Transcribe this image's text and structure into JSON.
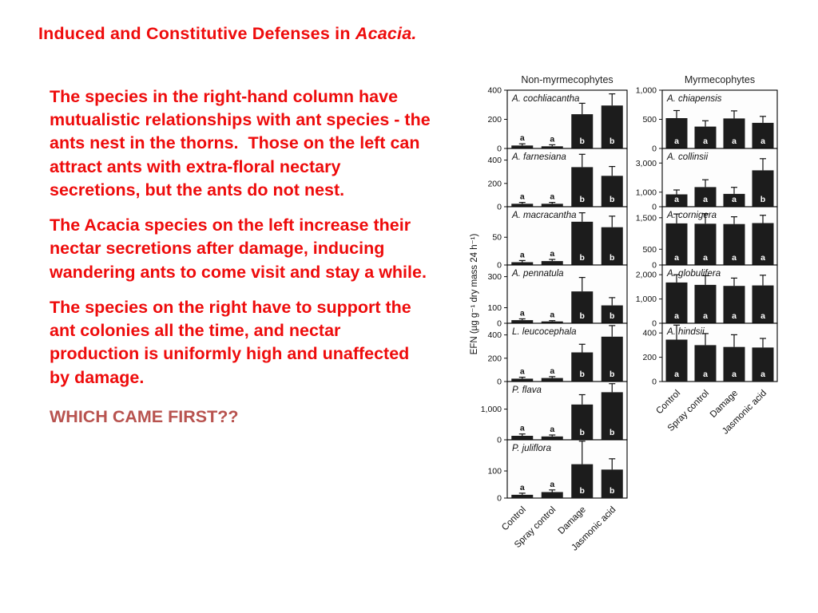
{
  "slide": {
    "title": {
      "prefix": "Induced and Constitutive Defenses in ",
      "emphasis": "Acacia."
    },
    "paragraphs": [
      "The species in the right-hand column have mutualistic relationships with ant species - the ants nest in the thorns.  Those on the left can attract ants with extra-floral nectary secretions, but the ants do not nest.",
      "The Acacia species on the left increase their nectar secretions after damage, inducing wandering ants to come visit and stay a while.",
      "The species on the right have to support the ant colonies all the time, and nectar production is uniformly high and unaffected by damage."
    ],
    "question": "WHICH CAME FIRST??",
    "colors": {
      "body_red": "#ee0c0c",
      "question_red": "#b8534f",
      "bar_fill": "#1c1c1c"
    }
  },
  "chart_data": [
    {
      "type": "bar",
      "group_title": "Non-myrmecophytes",
      "ylabel": "EFN (µg g⁻¹ dry mass 24 h⁻¹)",
      "categories": [
        "Control",
        "Spray control",
        "Damage",
        "Jasmonic acid"
      ],
      "panels": [
        {
          "species": "A. cochliacantha",
          "ylim": [
            0,
            400
          ],
          "yticks": [
            0,
            200,
            400
          ],
          "values": [
            20,
            15,
            235,
            295
          ],
          "errors": [
            12,
            10,
            75,
            80
          ],
          "letters": [
            "a",
            "a",
            "b",
            "b"
          ],
          "letter_pos": [
            "above",
            "above",
            "inside",
            "inside"
          ]
        },
        {
          "species": "A. farnesiana",
          "ylim": [
            0,
            500
          ],
          "yticks": [
            0,
            200,
            400
          ],
          "values": [
            25,
            25,
            340,
            265
          ],
          "errors": [
            12,
            12,
            110,
            80
          ],
          "letters": [
            "a",
            "a",
            "b",
            "b"
          ],
          "letter_pos": [
            "above",
            "above",
            "inside",
            "inside"
          ]
        },
        {
          "species": "A. macracantha",
          "ylim": [
            0,
            105
          ],
          "yticks": [
            0,
            50
          ],
          "values": [
            5,
            7,
            78,
            68
          ],
          "errors": [
            3,
            3,
            16,
            20
          ],
          "letters": [
            "a",
            "a",
            "b",
            "b"
          ],
          "letter_pos": [
            "above",
            "above",
            "inside",
            "inside"
          ]
        },
        {
          "species": "A. pennatula",
          "ylim": [
            0,
            375
          ],
          "yticks": [
            0,
            100,
            300
          ],
          "values": [
            20,
            12,
            205,
            115
          ],
          "errors": [
            8,
            5,
            90,
            50
          ],
          "letters": [
            "a",
            "a",
            "b",
            "b"
          ],
          "letter_pos": [
            "above",
            "above",
            "inside",
            "inside"
          ]
        },
        {
          "species": "L. leucocephala",
          "ylim": [
            0,
            500
          ],
          "yticks": [
            0,
            200,
            400
          ],
          "values": [
            25,
            30,
            250,
            385
          ],
          "errors": [
            12,
            12,
            70,
            95
          ],
          "letters": [
            "a",
            "a",
            "b",
            "b"
          ],
          "letter_pos": [
            "above",
            "above",
            "inside",
            "inside"
          ]
        },
        {
          "species": "P. flava",
          "ylim": [
            0,
            1900
          ],
          "yticks": [
            0,
            1000
          ],
          "values": [
            130,
            110,
            1150,
            1550
          ],
          "errors": [
            60,
            45,
            320,
            280
          ],
          "letters": [
            "a",
            "a",
            "b",
            "b"
          ],
          "letter_pos": [
            "above",
            "above",
            "inside",
            "inside"
          ]
        },
        {
          "species": "P. juliflora",
          "ylim": [
            0,
            215
          ],
          "yticks": [
            0,
            100
          ],
          "values": [
            12,
            22,
            125,
            105
          ],
          "errors": [
            6,
            8,
            85,
            40
          ],
          "letters": [
            "a",
            "a",
            "b",
            "b"
          ],
          "letter_pos": [
            "above",
            "above",
            "inside",
            "inside"
          ]
        }
      ]
    },
    {
      "type": "bar",
      "group_title": "Myrmecophytes",
      "ylabel": "",
      "categories": [
        "Control",
        "Spray control",
        "Damage",
        "Jasmonic acid"
      ],
      "panels": [
        {
          "species": "A. chiapensis",
          "ylim": [
            0,
            1000
          ],
          "yticks": [
            0,
            500,
            1000
          ],
          "values": [
            520,
            375,
            515,
            440
          ],
          "errors": [
            130,
            100,
            130,
            110
          ],
          "letters": [
            "a",
            "a",
            "a",
            "a"
          ],
          "letter_pos": [
            "inside",
            "inside",
            "inside",
            "inside"
          ]
        },
        {
          "species": "A. collinsii",
          "ylim": [
            0,
            4000
          ],
          "yticks": [
            0,
            1000,
            3000
          ],
          "values": [
            850,
            1350,
            880,
            2500
          ],
          "errors": [
            300,
            500,
            450,
            800
          ],
          "letters": [
            "a",
            "a",
            "a",
            "b"
          ],
          "letter_pos": [
            "inside",
            "inside",
            "inside",
            "inside"
          ]
        },
        {
          "species": "A. cornigera",
          "ylim": [
            0,
            1850
          ],
          "yticks": [
            0,
            500,
            1500
          ],
          "values": [
            1320,
            1310,
            1300,
            1330
          ],
          "errors": [
            300,
            320,
            230,
            250
          ],
          "letters": [
            "a",
            "a",
            "a",
            "a"
          ],
          "letter_pos": [
            "inside",
            "inside",
            "inside",
            "inside"
          ]
        },
        {
          "species": "A. globulifera",
          "ylim": [
            0,
            2400
          ],
          "yticks": [
            0,
            1000,
            2000
          ],
          "values": [
            1680,
            1580,
            1540,
            1560
          ],
          "errors": [
            320,
            380,
            320,
            420
          ],
          "letters": [
            "a",
            "a",
            "a",
            "a"
          ],
          "letter_pos": [
            "inside",
            "inside",
            "inside",
            "inside"
          ]
        },
        {
          "species": "A. hindsii",
          "ylim": [
            0,
            480
          ],
          "yticks": [
            0,
            200,
            400
          ],
          "values": [
            345,
            300,
            285,
            280
          ],
          "errors": [
            120,
            95,
            100,
            75
          ],
          "letters": [
            "a",
            "a",
            "a",
            "a"
          ],
          "letter_pos": [
            "inside",
            "inside",
            "inside",
            "inside"
          ]
        }
      ]
    }
  ]
}
